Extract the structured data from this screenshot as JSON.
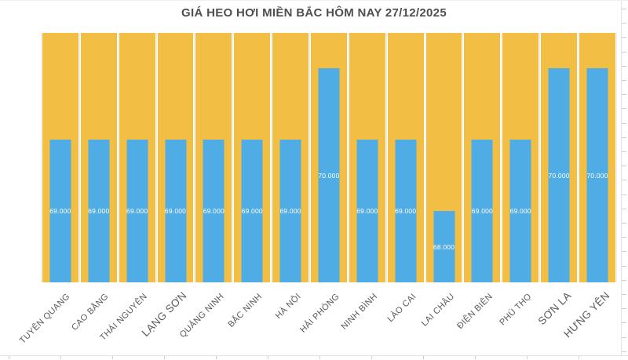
{
  "header": {
    "title": "GIÁ HEO HƠI MIỀN BẮC HÔM NAY 27/12/2025"
  },
  "chart_data": {
    "type": "bar",
    "title": "GIÁ HEO HƠI MIỀN BẮC HÔM NAY 27/12/2025",
    "categories": [
      "TUYÊN QUANG",
      "CAO BẰNG",
      "THÁI NGUYÊN",
      "LẠNG SƠN",
      "QUẢNG NINH",
      "BẮC NINH",
      "HÀ NỘI",
      "HẢI PHÒNG",
      "NINH BÌNH",
      "LÀO CAI",
      "LAI CHÂU",
      "ĐIỆN BIÊN",
      "PHÚ THỌ",
      "SƠN LA",
      "HƯNG YÊN"
    ],
    "values": [
      69000,
      69000,
      69000,
      69000,
      69000,
      69000,
      69000,
      70000,
      69000,
      69000,
      68000,
      69000,
      69000,
      70000,
      70000
    ],
    "value_labels": [
      "69.000",
      "69.000",
      "69.000",
      "69.000",
      "69.000",
      "69.000",
      "69.000",
      "70.000",
      "69.000",
      "69.000",
      "68.000",
      "69.000",
      "69.000",
      "70.000",
      "70.000"
    ],
    "emphasized_categories": [
      "LẠNG SƠN",
      "SƠN LA",
      "HƯNG YÊN"
    ],
    "xlabel": "",
    "ylabel": "",
    "ylim": [
      67000,
      70500
    ],
    "legend": "none",
    "grid": "vertical-category-separators",
    "colors": {
      "bar": "#4FACE4",
      "background_column": "#F2BE43",
      "bar_value_text": "#FFFFFF",
      "axis_text": "#595959",
      "title_text": "#4F4F4F",
      "axis_line": "#E3E3E3",
      "tick": "#CFCFCF"
    }
  }
}
